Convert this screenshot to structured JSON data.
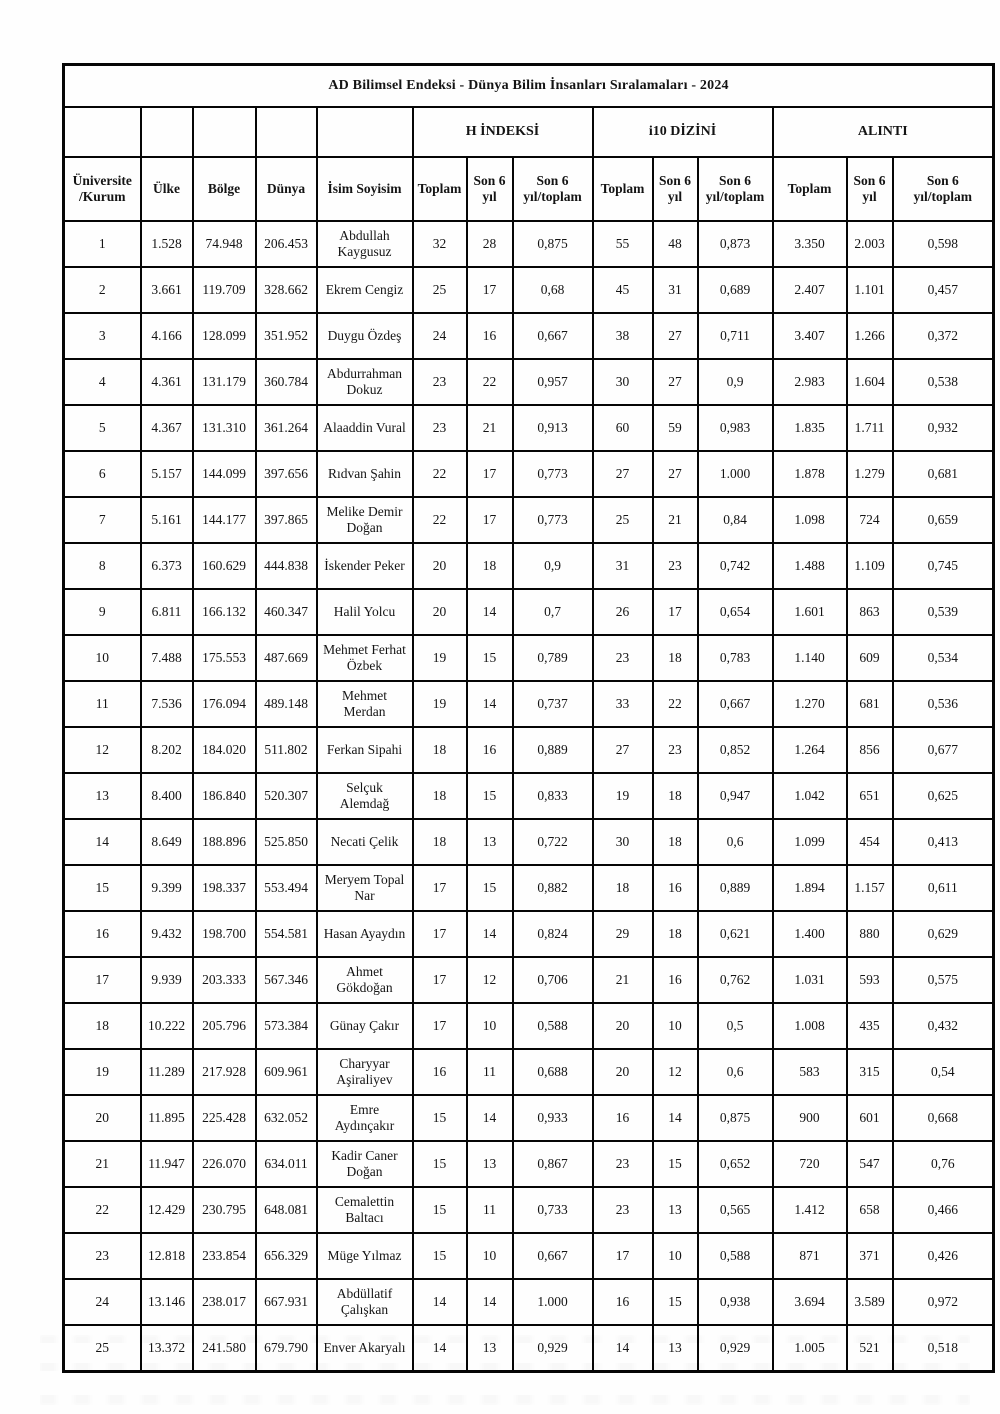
{
  "title": "AD Bilimsel Endeksi - Dünya Bilim İnsanları Sıralamaları - 2024",
  "groups": {
    "h_index": "H İNDEKSİ",
    "i10": "i10 DİZİNİ",
    "citation": "ALINTI"
  },
  "columns": [
    "Üniversite /Kurum",
    "Ülke",
    "Bölge",
    "Dünya",
    "İsim Soyisim",
    "Toplam",
    "Son 6 yıl",
    "Son 6 yıl/toplam",
    "Toplam",
    "Son 6 yıl",
    "Son 6 yıl/toplam",
    "Toplam",
    "Son 6 yıl",
    "Son 6 yıl/toplam"
  ],
  "rows": [
    [
      "1",
      "1.528",
      "74.948",
      "206.453",
      "Abdullah Kaygusuz",
      "32",
      "28",
      "0,875",
      "55",
      "48",
      "0,873",
      "3.350",
      "2.003",
      "0,598"
    ],
    [
      "2",
      "3.661",
      "119.709",
      "328.662",
      "Ekrem Cengiz",
      "25",
      "17",
      "0,68",
      "45",
      "31",
      "0,689",
      "2.407",
      "1.101",
      "0,457"
    ],
    [
      "3",
      "4.166",
      "128.099",
      "351.952",
      "Duygu Özdeş",
      "24",
      "16",
      "0,667",
      "38",
      "27",
      "0,711",
      "3.407",
      "1.266",
      "0,372"
    ],
    [
      "4",
      "4.361",
      "131.179",
      "360.784",
      "Abdurrahman Dokuz",
      "23",
      "22",
      "0,957",
      "30",
      "27",
      "0,9",
      "2.983",
      "1.604",
      "0,538"
    ],
    [
      "5",
      "4.367",
      "131.310",
      "361.264",
      "Alaaddin Vural",
      "23",
      "21",
      "0,913",
      "60",
      "59",
      "0,983",
      "1.835",
      "1.711",
      "0,932"
    ],
    [
      "6",
      "5.157",
      "144.099",
      "397.656",
      "Rıdvan Şahin",
      "22",
      "17",
      "0,773",
      "27",
      "27",
      "1.000",
      "1.878",
      "1.279",
      "0,681"
    ],
    [
      "7",
      "5.161",
      "144.177",
      "397.865",
      "Melike Demir Doğan",
      "22",
      "17",
      "0,773",
      "25",
      "21",
      "0,84",
      "1.098",
      "724",
      "0,659"
    ],
    [
      "8",
      "6.373",
      "160.629",
      "444.838",
      "İskender Peker",
      "20",
      "18",
      "0,9",
      "31",
      "23",
      "0,742",
      "1.488",
      "1.109",
      "0,745"
    ],
    [
      "9",
      "6.811",
      "166.132",
      "460.347",
      "Halil Yolcu",
      "20",
      "14",
      "0,7",
      "26",
      "17",
      "0,654",
      "1.601",
      "863",
      "0,539"
    ],
    [
      "10",
      "7.488",
      "175.553",
      "487.669",
      "Mehmet Ferhat Özbek",
      "19",
      "15",
      "0,789",
      "23",
      "18",
      "0,783",
      "1.140",
      "609",
      "0,534"
    ],
    [
      "11",
      "7.536",
      "176.094",
      "489.148",
      "Mehmet Merdan",
      "19",
      "14",
      "0,737",
      "33",
      "22",
      "0,667",
      "1.270",
      "681",
      "0,536"
    ],
    [
      "12",
      "8.202",
      "184.020",
      "511.802",
      "Ferkan Sipahi",
      "18",
      "16",
      "0,889",
      "27",
      "23",
      "0,852",
      "1.264",
      "856",
      "0,677"
    ],
    [
      "13",
      "8.400",
      "186.840",
      "520.307",
      "Selçuk Alemdağ",
      "18",
      "15",
      "0,833",
      "19",
      "18",
      "0,947",
      "1.042",
      "651",
      "0,625"
    ],
    [
      "14",
      "8.649",
      "188.896",
      "525.850",
      "Necati Çelik",
      "18",
      "13",
      "0,722",
      "30",
      "18",
      "0,6",
      "1.099",
      "454",
      "0,413"
    ],
    [
      "15",
      "9.399",
      "198.337",
      "553.494",
      "Meryem Topal Nar",
      "17",
      "15",
      "0,882",
      "18",
      "16",
      "0,889",
      "1.894",
      "1.157",
      "0,611"
    ],
    [
      "16",
      "9.432",
      "198.700",
      "554.581",
      "Hasan Ayaydın",
      "17",
      "14",
      "0,824",
      "29",
      "18",
      "0,621",
      "1.400",
      "880",
      "0,629"
    ],
    [
      "17",
      "9.939",
      "203.333",
      "567.346",
      "Ahmet Gökdoğan",
      "17",
      "12",
      "0,706",
      "21",
      "16",
      "0,762",
      "1.031",
      "593",
      "0,575"
    ],
    [
      "18",
      "10.222",
      "205.796",
      "573.384",
      "Günay Çakır",
      "17",
      "10",
      "0,588",
      "20",
      "10",
      "0,5",
      "1.008",
      "435",
      "0,432"
    ],
    [
      "19",
      "11.289",
      "217.928",
      "609.961",
      "Charyyar Aşiraliyev",
      "16",
      "11",
      "0,688",
      "20",
      "12",
      "0,6",
      "583",
      "315",
      "0,54"
    ],
    [
      "20",
      "11.895",
      "225.428",
      "632.052",
      "Emre Aydınçakır",
      "15",
      "14",
      "0,933",
      "16",
      "14",
      "0,875",
      "900",
      "601",
      "0,668"
    ],
    [
      "21",
      "11.947",
      "226.070",
      "634.011",
      "Kadir Caner Doğan",
      "15",
      "13",
      "0,867",
      "23",
      "15",
      "0,652",
      "720",
      "547",
      "0,76"
    ],
    [
      "22",
      "12.429",
      "230.795",
      "648.081",
      "Cemalettin Baltacı",
      "15",
      "11",
      "0,733",
      "23",
      "13",
      "0,565",
      "1.412",
      "658",
      "0,466"
    ],
    [
      "23",
      "12.818",
      "233.854",
      "656.329",
      "Müge Yılmaz",
      "15",
      "10",
      "0,667",
      "17",
      "10",
      "0,588",
      "871",
      "371",
      "0,426"
    ],
    [
      "24",
      "13.146",
      "238.017",
      "667.931",
      "Abdüllatif Çalışkan",
      "14",
      "14",
      "1.000",
      "16",
      "15",
      "0,938",
      "3.694",
      "3.589",
      "0,972"
    ],
    [
      "25",
      "13.372",
      "241.580",
      "679.790",
      "Enver Akaryalı",
      "14",
      "13",
      "0,929",
      "14",
      "13",
      "0,929",
      "1.005",
      "521",
      "0,518"
    ]
  ],
  "colors": {
    "ink": "#141414",
    "border": "#050505",
    "paper": "#fefefe"
  }
}
